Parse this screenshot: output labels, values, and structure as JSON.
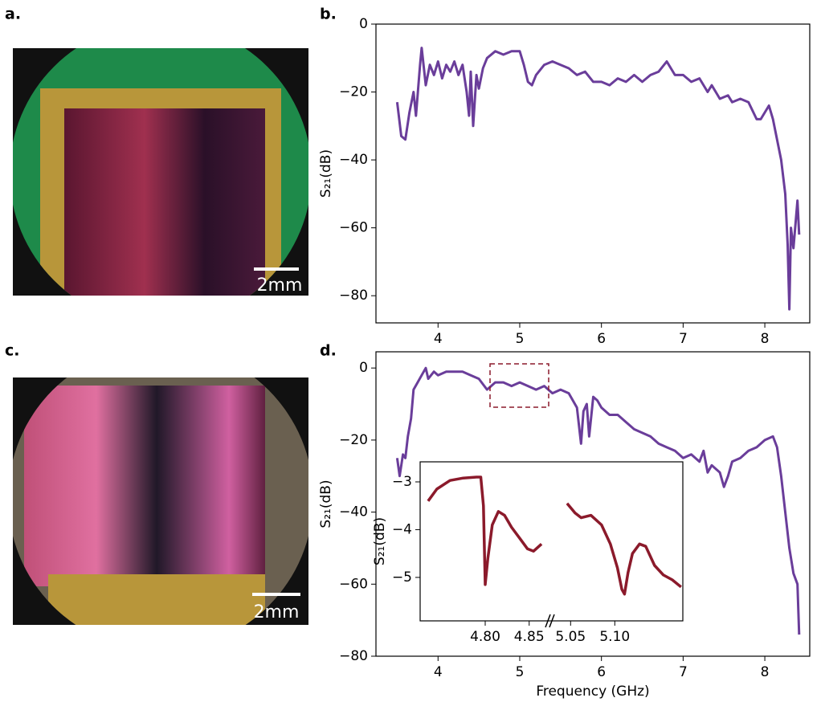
{
  "panel_labels": [
    "a.",
    "b.",
    "c.",
    "d."
  ],
  "photos": [
    {
      "scale_bar": "2mm"
    },
    {
      "scale_bar": "2mm"
    }
  ],
  "chart_data": [
    {
      "type": "line",
      "color": "#6a3d9a",
      "ylabel": "S₂₁(dB)",
      "xlim": [
        3.24,
        8.55
      ],
      "xticks": [
        4,
        5,
        6,
        7,
        8
      ],
      "ylim": [
        -88,
        0
      ],
      "yticks": [
        0,
        {
          "value": -20,
          "label": "−20"
        },
        {
          "value": -40,
          "label": "−40"
        },
        {
          "value": -60,
          "label": "−60"
        },
        {
          "value": -80,
          "label": "−80"
        }
      ],
      "x": [
        3.5,
        3.55,
        3.6,
        3.65,
        3.7,
        3.73,
        3.78,
        3.8,
        3.85,
        3.9,
        3.95,
        4.0,
        4.05,
        4.1,
        4.15,
        4.2,
        4.25,
        4.3,
        4.35,
        4.38,
        4.4,
        4.43,
        4.47,
        4.5,
        4.55,
        4.6,
        4.7,
        4.8,
        4.9,
        5.0,
        5.05,
        5.1,
        5.15,
        5.2,
        5.3,
        5.4,
        5.5,
        5.6,
        5.7,
        5.8,
        5.9,
        6.0,
        6.1,
        6.2,
        6.3,
        6.4,
        6.5,
        6.6,
        6.7,
        6.8,
        6.9,
        7.0,
        7.1,
        7.2,
        7.3,
        7.35,
        7.45,
        7.55,
        7.6,
        7.7,
        7.8,
        7.9,
        7.95,
        8.05,
        8.1,
        8.2,
        8.25,
        8.28,
        8.3,
        8.32,
        8.35,
        8.4,
        8.42
      ],
      "values": [
        -23,
        -33,
        -34,
        -26,
        -20,
        -27,
        -12,
        -7,
        -18,
        -12,
        -15,
        -11,
        -16,
        -12,
        -14,
        -11,
        -15,
        -12,
        -20,
        -27,
        -14,
        -30,
        -15,
        -19,
        -13,
        -10,
        -8,
        -9,
        -8,
        -8,
        -12,
        -17,
        -18,
        -15,
        -12,
        -11,
        -12,
        -13,
        -15,
        -14,
        -17,
        -17,
        -18,
        -16,
        -17,
        -15,
        -17,
        -15,
        -14,
        -11,
        -15,
        -15,
        -17,
        -16,
        -20,
        -18,
        -22,
        -21,
        -23,
        -22,
        -23,
        -28,
        -28,
        -24,
        -28,
        -40,
        -50,
        -65,
        -84,
        -60,
        -66,
        -52,
        -62
      ]
    },
    {
      "type": "line",
      "color": "#6a3d9a",
      "xlabel": "Frequency (GHz)",
      "ylabel": "S₂₁(dB)",
      "xlim": [
        3.24,
        8.55
      ],
      "xticks": [
        4,
        5,
        6,
        7,
        8
      ],
      "ylim": [
        -80,
        4.5
      ],
      "yticks": [
        0,
        {
          "value": -20,
          "label": "−20"
        },
        {
          "value": -40,
          "label": "−40"
        },
        {
          "value": -60,
          "label": "−60"
        },
        {
          "value": -80,
          "label": "−80"
        }
      ],
      "x": [
        3.5,
        3.53,
        3.57,
        3.6,
        3.63,
        3.67,
        3.7,
        3.75,
        3.8,
        3.85,
        3.88,
        3.95,
        4.0,
        4.1,
        4.2,
        4.3,
        4.4,
        4.5,
        4.6,
        4.65,
        4.7,
        4.8,
        4.9,
        5.0,
        5.1,
        5.2,
        5.3,
        5.4,
        5.5,
        5.6,
        5.7,
        5.75,
        5.78,
        5.82,
        5.85,
        5.9,
        5.95,
        6.0,
        6.1,
        6.2,
        6.3,
        6.4,
        6.5,
        6.6,
        6.7,
        6.8,
        6.9,
        7.0,
        7.1,
        7.2,
        7.25,
        7.3,
        7.35,
        7.45,
        7.5,
        7.55,
        7.6,
        7.7,
        7.8,
        7.9,
        8.0,
        8.1,
        8.15,
        8.2,
        8.25,
        8.3,
        8.35,
        8.4,
        8.42
      ],
      "values": [
        -25,
        -30,
        -24,
        -25,
        -19,
        -14,
        -6,
        -4,
        -2,
        0,
        -3,
        -1,
        -2,
        -1,
        -1,
        -1,
        -2,
        -3,
        -6,
        -5,
        -4,
        -4,
        -5,
        -4,
        -5,
        -6,
        -5,
        -7,
        -6,
        -7,
        -11,
        -21,
        -12,
        -10,
        -19,
        -8,
        -9,
        -11,
        -13,
        -13,
        -15,
        -17,
        -18,
        -19,
        -21,
        -22,
        -23,
        -25,
        -24,
        -26,
        -23,
        -29,
        -27,
        -29,
        -33,
        -30,
        -26,
        -25,
        -23,
        -22,
        -20,
        -19,
        -22,
        -30,
        -40,
        -50,
        -57,
        -60,
        -74
      ]
    },
    {
      "type": "broken-line",
      "color": "#8b1a2b",
      "ylabel": "S₂₁(dB)",
      "ylim": [
        -5.91,
        -2.58
      ],
      "yticks": [
        {
          "value": -3,
          "label": "−3"
        },
        {
          "value": -4,
          "label": "−4"
        },
        {
          "value": -5,
          "label": "−5"
        }
      ],
      "segments": [
        {
          "xlim": [
            4.726,
            4.874
          ],
          "xticks": [
            {
              "value": 4.8,
              "label": "4.80"
            },
            4.85
          ],
          "x": [
            4.735,
            4.745,
            4.76,
            4.775,
            4.79,
            4.795,
            4.798,
            4.8,
            4.803,
            4.808,
            4.815,
            4.822,
            4.83,
            4.84,
            4.848,
            4.855,
            4.864
          ],
          "values": [
            -3.4,
            -3.15,
            -2.97,
            -2.92,
            -2.9,
            -2.9,
            -3.5,
            -5.15,
            -4.6,
            -3.9,
            -3.62,
            -3.7,
            -3.95,
            -4.2,
            -4.4,
            -4.45,
            -4.3
          ]
        },
        {
          "xlim": [
            5.027,
            5.177
          ],
          "xticks": [
            5.05,
            {
              "value": 5.1,
              "label": "5.10"
            }
          ],
          "x": [
            5.046,
            5.055,
            5.062,
            5.073,
            5.085,
            5.095,
            5.103,
            5.108,
            5.111,
            5.115,
            5.12,
            5.128,
            5.135,
            5.145,
            5.155,
            5.165,
            5.175
          ],
          "values": [
            -3.45,
            -3.65,
            -3.75,
            -3.7,
            -3.9,
            -4.3,
            -4.8,
            -5.25,
            -5.35,
            -4.9,
            -4.5,
            -4.3,
            -4.35,
            -4.75,
            -4.95,
            -5.05,
            -5.2
          ]
        }
      ]
    }
  ]
}
